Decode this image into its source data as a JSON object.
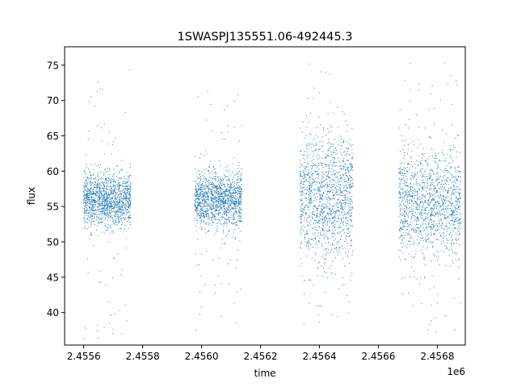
{
  "chart_data": {
    "type": "scatter",
    "title": "1SWASPJ135551.06-492445.3",
    "xlabel": "time",
    "ylabel": "flux",
    "x_offset_label": "1e6",
    "xlim": [
      2455535,
      2456895
    ],
    "ylim": [
      35.4,
      77.6
    ],
    "x_ticks": [
      2455600,
      2455800,
      2456000,
      2456200,
      2456400,
      2456600,
      2456800
    ],
    "x_tick_labels": [
      "2.4556",
      "2.4558",
      "2.4560",
      "2.4562",
      "2.4564",
      "2.4566",
      "2.4568"
    ],
    "y_ticks": [
      40,
      45,
      50,
      55,
      60,
      65,
      70,
      75
    ],
    "y_tick_labels": [
      "40",
      "45",
      "50",
      "55",
      "60",
      "65",
      "70",
      "75"
    ],
    "grid": false,
    "legend": "none",
    "color": "#1f77b4",
    "series": [
      {
        "segments": [
          {
            "x_start": 2455598,
            "x_end": 2455758,
            "center": 56.0,
            "spread": 1.9,
            "low": 36.2,
            "high": 74.5
          },
          {
            "x_start": 2455975,
            "x_end": 2456135,
            "center": 56.0,
            "spread": 2.0,
            "low": 37.1,
            "high": 72.8
          },
          {
            "x_start": 2456332,
            "x_end": 2456512,
            "center": 56.5,
            "spread": 4.3,
            "low": 37.0,
            "high": 75.6
          },
          {
            "x_start": 2456668,
            "x_end": 2456878,
            "center": 55.5,
            "spread": 3.6,
            "low": 37.0,
            "high": 75.6
          }
        ]
      }
    ]
  }
}
